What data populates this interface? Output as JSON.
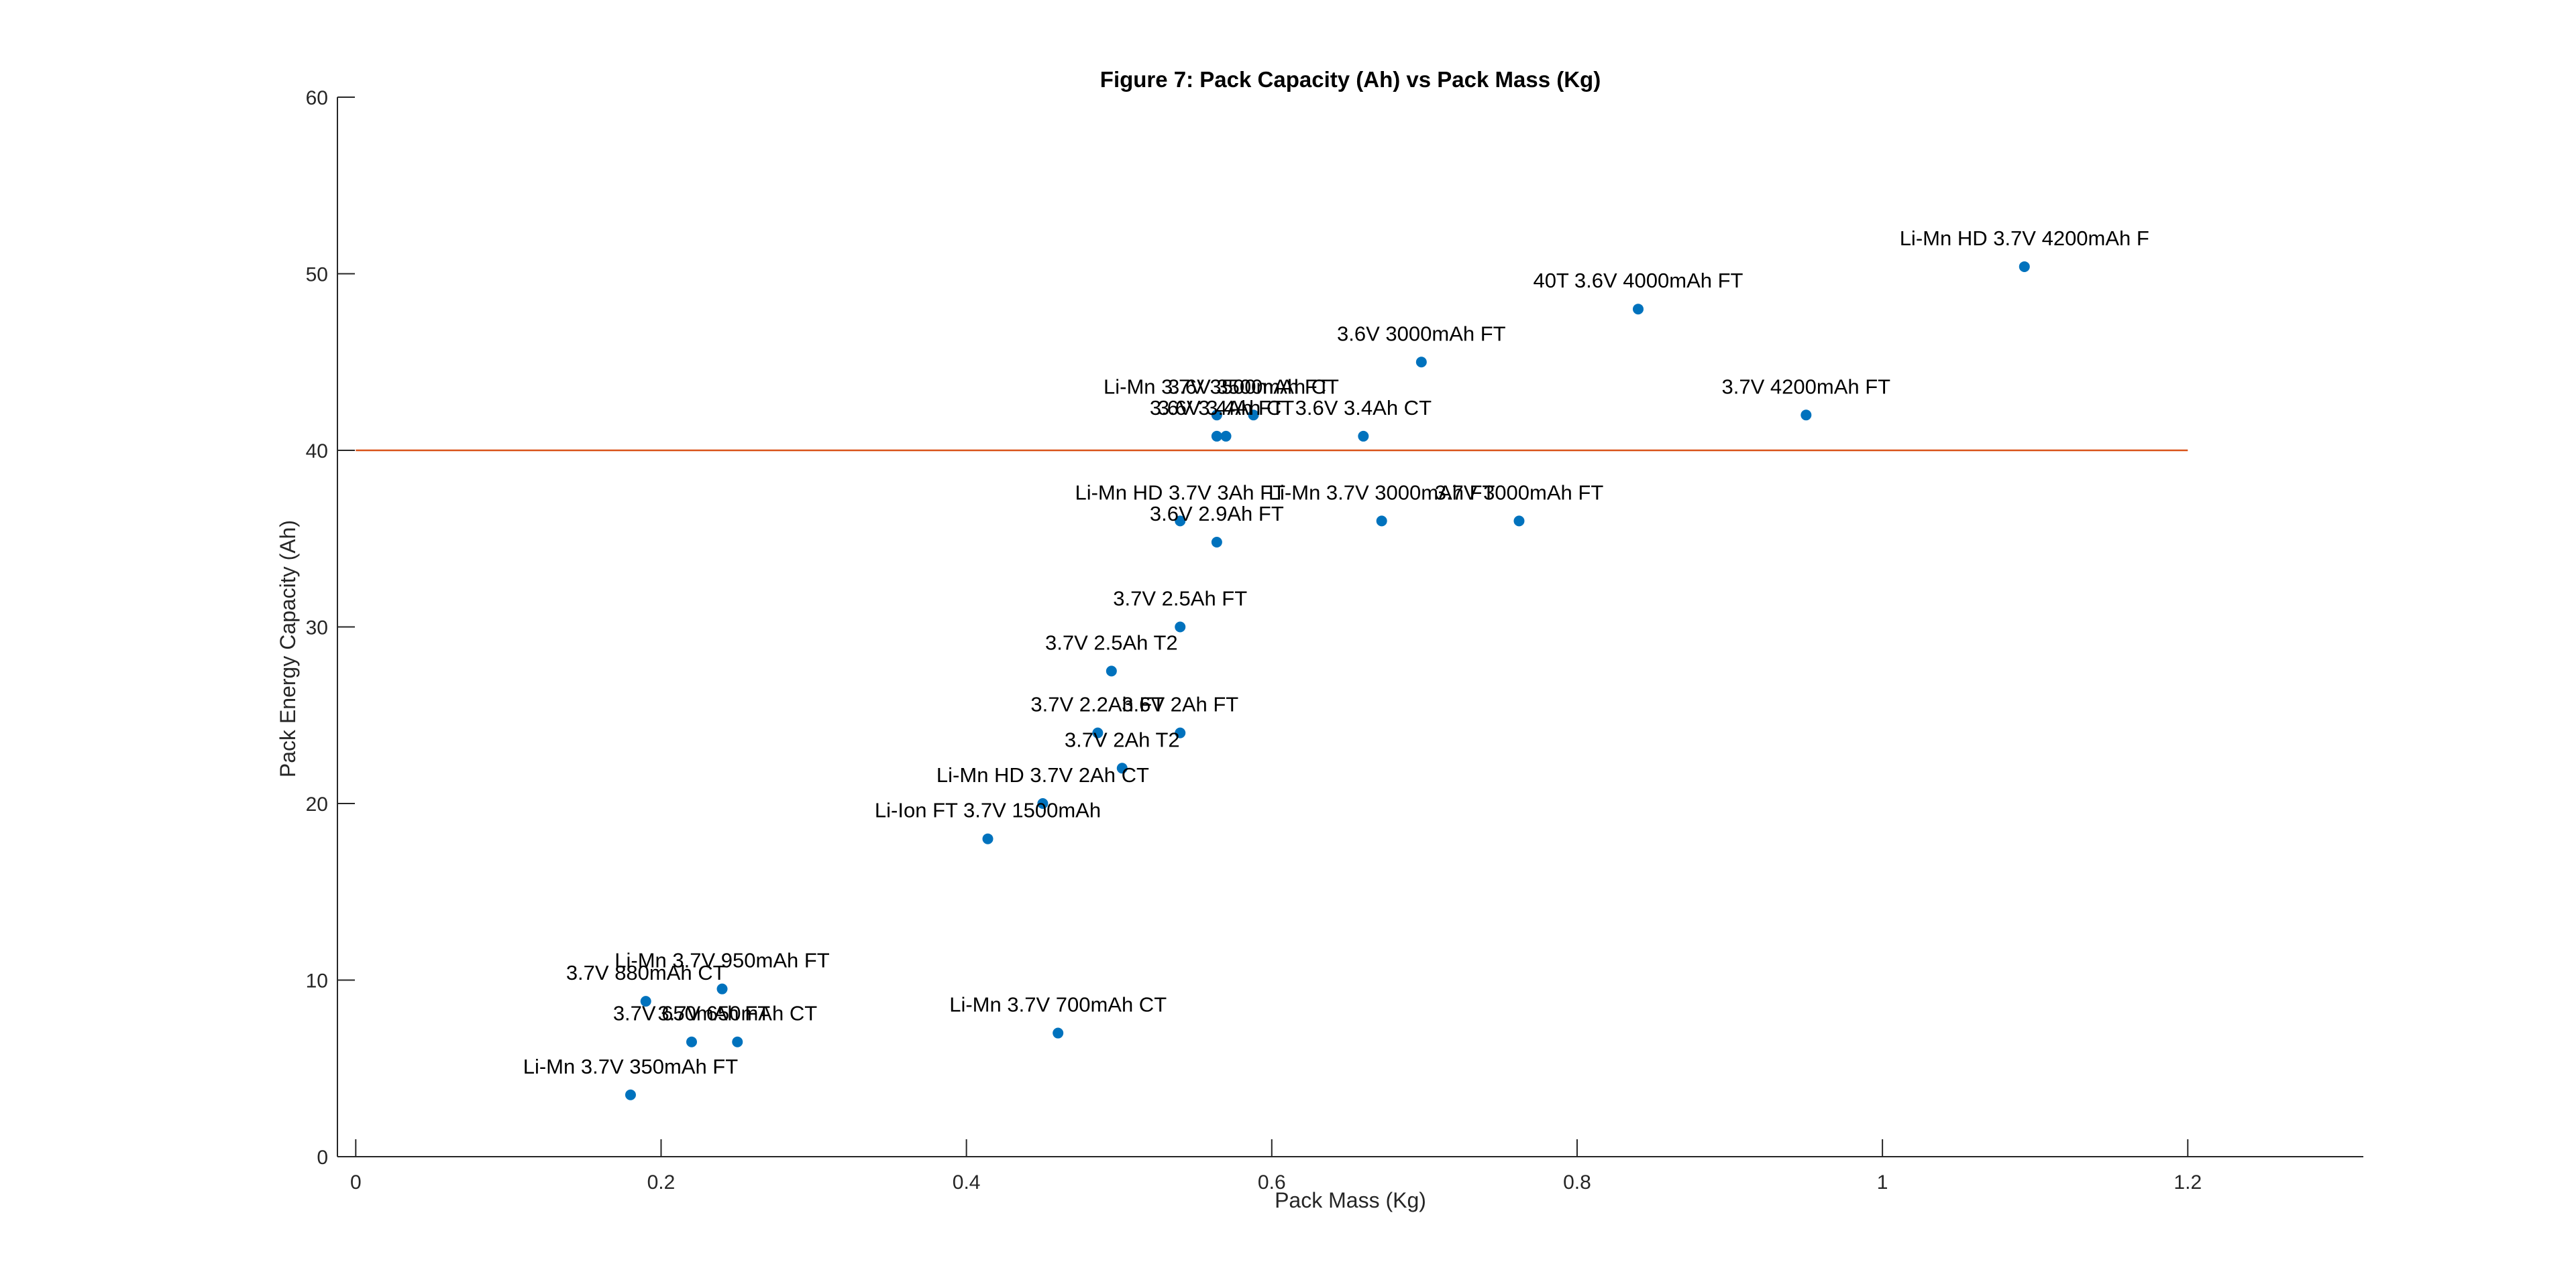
{
  "chart_data": {
    "type": "scatter",
    "title": "Figure 7: Pack Capacity (Ah) vs Pack Mass (Kg)",
    "xlabel": "Pack Mass (Kg)",
    "ylabel": "Pack Energy Capacity (Ah)",
    "xlim": [
      -0.012,
      1.315
    ],
    "ylim": [
      0,
      60
    ],
    "xticks": [
      0,
      0.2,
      0.4,
      0.6,
      0.8,
      1,
      1.2
    ],
    "xtick_labels": [
      "0",
      "0.2",
      "0.4",
      "0.6",
      "0.8",
      "1",
      "1.2"
    ],
    "yticks": [
      0,
      10,
      20,
      30,
      40,
      50,
      60
    ],
    "ytick_labels": [
      "0",
      "10",
      "20",
      "30",
      "40",
      "50",
      "60"
    ],
    "grid": false,
    "colors": {
      "points": "#0072BD",
      "reference_line": "#D95319",
      "axis": "#262626"
    },
    "reference_line": {
      "y": 40,
      "x": [
        0,
        1.2
      ]
    },
    "points": [
      {
        "x": 1.093,
        "y": 50.4,
        "label": "Li-Mn HD 3.7V 4200mAh F"
      },
      {
        "x": 0.84,
        "y": 48.0,
        "label": "40T 3.6V 4000mAh FT"
      },
      {
        "x": 0.698,
        "y": 45.0,
        "label": "3.6V 3000mAh FT"
      },
      {
        "x": 0.95,
        "y": 42.0,
        "label": "3.7V 4200mAh FT"
      },
      {
        "x": 0.564,
        "y": 42.0,
        "label": "Li-Mn 3.7V 3500mAh FT"
      },
      {
        "x": 0.588,
        "y": 42.0,
        "label": "3.6V 3500mAh CT"
      },
      {
        "x": 0.564,
        "y": 40.8,
        "label": "3.6V 3.4Ah FT"
      },
      {
        "x": 0.57,
        "y": 40.8,
        "label": "3.6V 3.4Ah CT"
      },
      {
        "x": 0.66,
        "y": 40.8,
        "label": "3.6V 3.4Ah CT"
      },
      {
        "x": 0.54,
        "y": 36.0,
        "label": "Li-Mn HD 3.7V 3Ah FT"
      },
      {
        "x": 0.672,
        "y": 36.0,
        "label": "Li-Mn 3.7V 3000mAh FT"
      },
      {
        "x": 0.762,
        "y": 36.0,
        "label": "3.7V 3000mAh FT"
      },
      {
        "x": 0.564,
        "y": 34.8,
        "label": "3.6V 2.9Ah FT"
      },
      {
        "x": 0.54,
        "y": 30.0,
        "label": "3.7V 2.5Ah FT"
      },
      {
        "x": 0.495,
        "y": 27.5,
        "label": "3.7V 2.5Ah T2"
      },
      {
        "x": 0.486,
        "y": 24.0,
        "label": "3.7V 2.2Ah FT"
      },
      {
        "x": 0.54,
        "y": 24.0,
        "label": "3.6V 2Ah FT"
      },
      {
        "x": 0.502,
        "y": 22.0,
        "label": "3.7V 2Ah T2"
      },
      {
        "x": 0.45,
        "y": 20.0,
        "label": "Li-Mn HD 3.7V 2Ah CT"
      },
      {
        "x": 0.414,
        "y": 18.0,
        "label": "Li-Ion FT 3.7V 1500mAh"
      },
      {
        "x": 0.24,
        "y": 9.5,
        "label": "Li-Mn 3.7V 950mAh FT"
      },
      {
        "x": 0.19,
        "y": 8.8,
        "label": "3.7V 880mAh CT"
      },
      {
        "x": 0.22,
        "y": 6.5,
        "label": "3.7V 650mAh FT"
      },
      {
        "x": 0.25,
        "y": 6.5,
        "label": "3.7V 650mAh CT"
      },
      {
        "x": 0.46,
        "y": 7.0,
        "label": "Li-Mn 3.7V 700mAh CT"
      },
      {
        "x": 0.18,
        "y": 3.5,
        "label": "Li-Mn 3.7V 350mAh FT"
      }
    ]
  }
}
